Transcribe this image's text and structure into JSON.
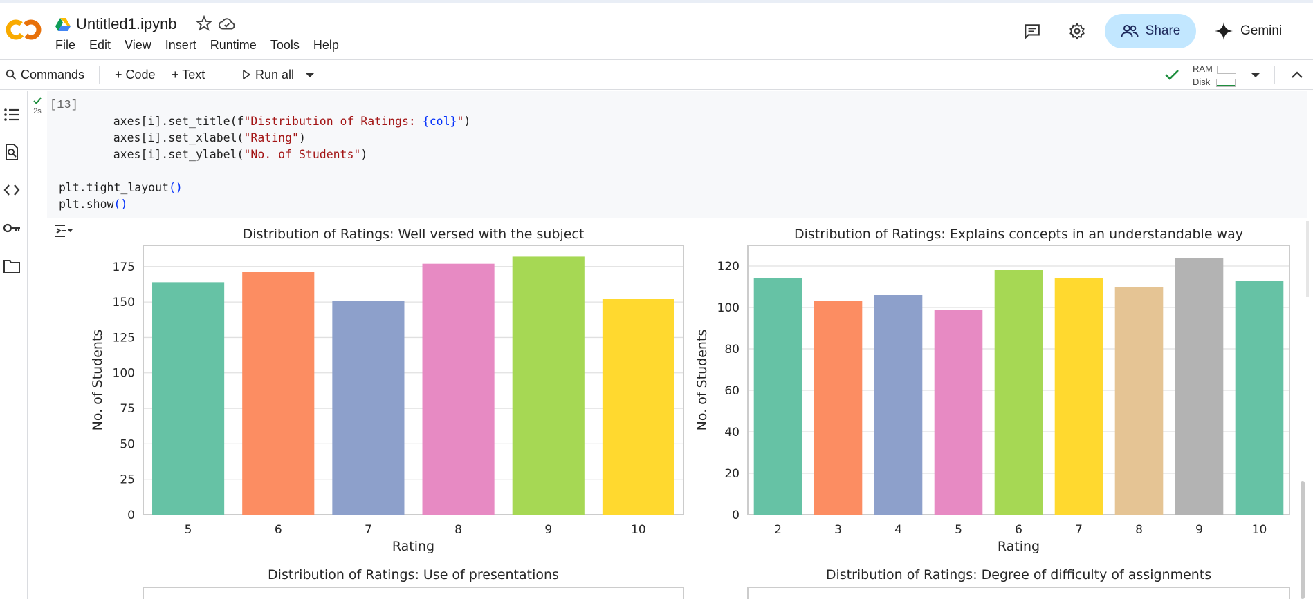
{
  "header": {
    "logo_text": "CO",
    "notebook_title": "Untitled1.ipynb",
    "menu": [
      "File",
      "Edit",
      "View",
      "Insert",
      "Runtime",
      "Tools",
      "Help"
    ],
    "share_label": "Share",
    "gemini_label": "Gemini"
  },
  "toolbar": {
    "commands_label": "Commands",
    "code_label": "+ Code",
    "text_label": "+ Text",
    "run_all_label": "Run all",
    "ram_label": "RAM",
    "disk_label": "Disk"
  },
  "cell": {
    "status_time": "2s",
    "exec_count": "[13]",
    "code_lines": [
      [
        "    axes[i].set_title(f",
        "\"Distribution of Ratings: ",
        "{col}",
        "\"",
        ")"
      ],
      [
        "    axes[i].set_xlabel(",
        "\"Rating\"",
        ")"
      ],
      [
        "    axes[i].set_ylabel(",
        "\"No. of Students\"",
        ")"
      ],
      [
        "plt.tight_layout",
        "()"
      ],
      [
        "plt.show",
        "()"
      ]
    ]
  },
  "icons": {
    "logo": "colab-logo-icon",
    "drive": "google-drive-icon",
    "star": "star-icon",
    "cloud": "cloud-saved-icon",
    "comments": "comments-icon",
    "settings": "gear-icon",
    "share": "people-icon",
    "gemini": "sparkle-icon",
    "search": "search-icon",
    "run": "play-icon",
    "dropdown": "chevron-down-icon",
    "collapse": "chevron-up-icon",
    "check": "check-icon",
    "rail": [
      "table-of-contents-icon",
      "find-icon",
      "code-snippets-icon",
      "secrets-key-icon",
      "folder-icon"
    ],
    "output_toggle": "output-actions-icon"
  },
  "colors": {
    "share_bg": "#c2e7ff",
    "palette": [
      "#66c2a5",
      "#fc8d62",
      "#8da0cb",
      "#e78ac3",
      "#a6d854",
      "#ffd92f",
      "#e5c494",
      "#b3b3b3"
    ]
  },
  "chart_data": [
    {
      "type": "bar",
      "title": "Distribution of Ratings: Well versed with the subject",
      "xlabel": "Rating",
      "ylabel": "No. of Students",
      "categories": [
        "5",
        "6",
        "7",
        "8",
        "9",
        "10"
      ],
      "values": [
        164,
        171,
        151,
        177,
        182,
        152
      ],
      "ylim": [
        0,
        190
      ],
      "yticks": [
        0,
        25,
        50,
        75,
        100,
        125,
        150,
        175
      ],
      "grid": true
    },
    {
      "type": "bar",
      "title": "Distribution of Ratings: Explains concepts in an understandable way",
      "xlabel": "Rating",
      "ylabel": "No. of Students",
      "categories": [
        "2",
        "3",
        "4",
        "5",
        "6",
        "7",
        "8",
        "9",
        "10"
      ],
      "values": [
        114,
        103,
        106,
        99,
        118,
        114,
        110,
        124,
        113
      ],
      "ylim": [
        0,
        130
      ],
      "yticks": [
        0,
        20,
        40,
        60,
        80,
        100,
        120
      ],
      "grid": true
    },
    {
      "type": "bar",
      "title": "Distribution of Ratings: Use of presentations",
      "xlabel": "",
      "ylabel": "",
      "categories": [],
      "values": []
    },
    {
      "type": "bar",
      "title": "Distribution of Ratings: Degree of difficulty of assignments",
      "xlabel": "",
      "ylabel": "",
      "categories": [],
      "values": []
    }
  ]
}
